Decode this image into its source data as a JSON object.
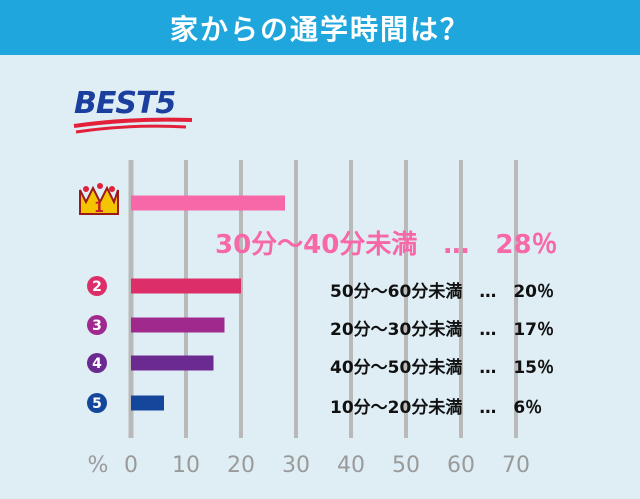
{
  "header": {
    "title": "家からの通学時間は？"
  },
  "badge": {
    "text": "BEST5"
  },
  "ranks": [
    {
      "rank": "1",
      "icon": "crown-icon"
    },
    {
      "rank": "2",
      "icon": "circle-number-icon"
    },
    {
      "rank": "3",
      "icon": "circle-number-icon"
    },
    {
      "rank": "4",
      "icon": "circle-number-icon"
    },
    {
      "rank": "5",
      "icon": "circle-number-icon"
    }
  ],
  "labels": [
    "30分～40分未満　…　28％",
    "50分～60分未満　…　20％",
    "20分～30分未満　…　17％",
    "40分～50分未満　…　15％",
    "10分～20分未満　…　6％"
  ],
  "chart_data": {
    "type": "bar",
    "orientation": "horizontal",
    "categories": [
      "30分～40分未満",
      "50分～60分未満",
      "20分～30分未満",
      "40分～50分未満",
      "10分～20分未満"
    ],
    "values": [
      28,
      20,
      17,
      15,
      6
    ],
    "colors": [
      "#f768a8",
      "#dc2f69",
      "#a0298e",
      "#6b2a8f",
      "#14469c"
    ],
    "xlabel": "%",
    "xlim": [
      0,
      70
    ],
    "xticks": [
      "0",
      "10",
      "20",
      "30",
      "40",
      "50",
      "60",
      "70"
    ],
    "grid": true
  }
}
